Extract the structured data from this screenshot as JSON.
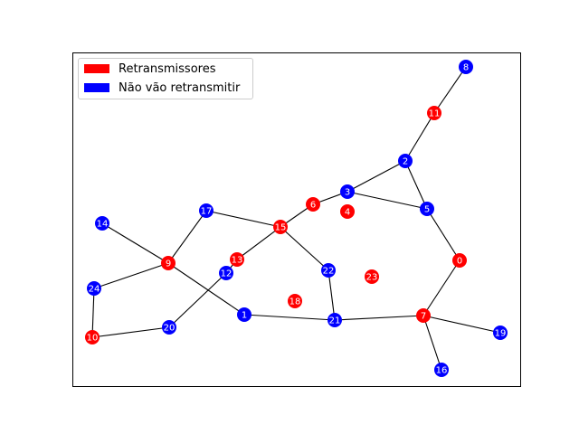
{
  "colors": {
    "retransmitter": "#ff0000",
    "non_retransmitter": "#0000ff",
    "edge": "#000000",
    "node_label": "#ffffff",
    "frame": "#000000"
  },
  "legend": {
    "placement": "top-left",
    "items": [
      {
        "label": "Retransmissores",
        "color": "#ff0000"
      },
      {
        "label": "Não vão retransmitir",
        "color": "#0000ff"
      }
    ]
  },
  "graph": {
    "nodes": [
      {
        "id": "0",
        "role": "retransmitter"
      },
      {
        "id": "1",
        "role": "non_retransmitter"
      },
      {
        "id": "2",
        "role": "non_retransmitter"
      },
      {
        "id": "3",
        "role": "non_retransmitter"
      },
      {
        "id": "4",
        "role": "retransmitter"
      },
      {
        "id": "5",
        "role": "non_retransmitter"
      },
      {
        "id": "6",
        "role": "retransmitter"
      },
      {
        "id": "7",
        "role": "retransmitter"
      },
      {
        "id": "8",
        "role": "non_retransmitter"
      },
      {
        "id": "9",
        "role": "retransmitter"
      },
      {
        "id": "10",
        "role": "retransmitter"
      },
      {
        "id": "11",
        "role": "retransmitter"
      },
      {
        "id": "12",
        "role": "non_retransmitter"
      },
      {
        "id": "13",
        "role": "retransmitter"
      },
      {
        "id": "14",
        "role": "non_retransmitter"
      },
      {
        "id": "15",
        "role": "retransmitter"
      },
      {
        "id": "16",
        "role": "non_retransmitter"
      },
      {
        "id": "17",
        "role": "non_retransmitter"
      },
      {
        "id": "18",
        "role": "retransmitter"
      },
      {
        "id": "19",
        "role": "non_retransmitter"
      },
      {
        "id": "20",
        "role": "non_retransmitter"
      },
      {
        "id": "21",
        "role": "non_retransmitter"
      },
      {
        "id": "22",
        "role": "non_retransmitter"
      },
      {
        "id": "23",
        "role": "retransmitter"
      },
      {
        "id": "24",
        "role": "non_retransmitter"
      }
    ],
    "edges": [
      [
        "8",
        "11"
      ],
      [
        "11",
        "2"
      ],
      [
        "2",
        "3"
      ],
      [
        "2",
        "5"
      ],
      [
        "3",
        "5"
      ],
      [
        "3",
        "6"
      ],
      [
        "6",
        "15"
      ],
      [
        "5",
        "0"
      ],
      [
        "0",
        "7"
      ],
      [
        "7",
        "21"
      ],
      [
        "7",
        "19"
      ],
      [
        "7",
        "16"
      ],
      [
        "21",
        "1"
      ],
      [
        "21",
        "22"
      ],
      [
        "22",
        "15"
      ],
      [
        "15",
        "17"
      ],
      [
        "15",
        "13"
      ],
      [
        "13",
        "12"
      ],
      [
        "12",
        "20"
      ],
      [
        "17",
        "9"
      ],
      [
        "14",
        "9"
      ],
      [
        "9",
        "24"
      ],
      [
        "9",
        "1"
      ],
      [
        "24",
        "10"
      ],
      [
        "10",
        "20"
      ]
    ]
  }
}
